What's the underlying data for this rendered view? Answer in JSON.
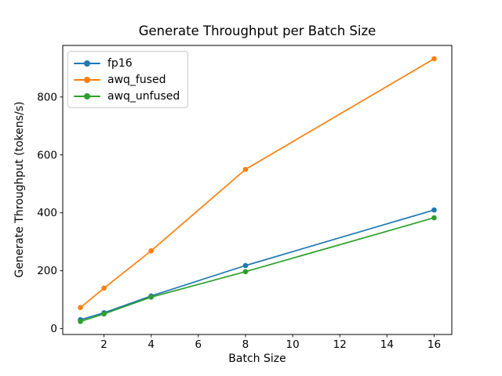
{
  "chart_data": {
    "type": "line",
    "title": "Generate Throughput per Batch Size",
    "xlabel": "Batch Size",
    "ylabel": "Generate Throughput (tokens/s)",
    "x": [
      1,
      2,
      4,
      8,
      16
    ],
    "series": [
      {
        "name": "fp16",
        "color": "#1f77b4",
        "values": [
          31,
          55,
          113,
          218,
          410
        ]
      },
      {
        "name": "awq_fused",
        "color": "#ff7f0e",
        "values": [
          73,
          140,
          269,
          550,
          932
        ]
      },
      {
        "name": "awq_unfused",
        "color": "#2ca02c",
        "values": [
          25,
          51,
          109,
          197,
          383
        ]
      }
    ],
    "xticks": [
      2,
      4,
      6,
      8,
      10,
      12,
      14,
      16
    ],
    "yticks": [
      0,
      200,
      400,
      600,
      800
    ],
    "xlim": [
      0.25,
      16.75
    ],
    "ylim": [
      -20,
      978
    ],
    "grid": false,
    "marker": "o",
    "legend_position": "upper-left",
    "axis_color": "#000000",
    "background_color": "#ffffff"
  }
}
